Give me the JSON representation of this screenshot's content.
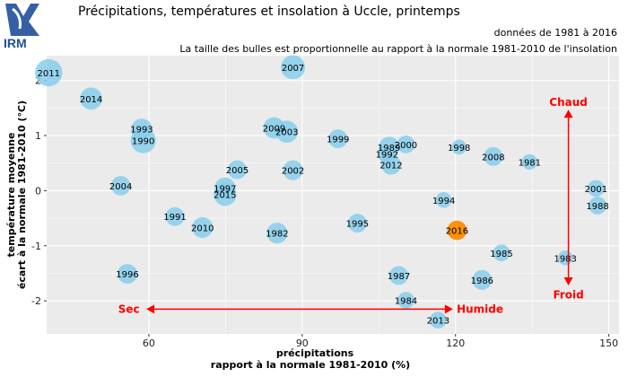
{
  "header": {
    "title": "Précipitations, températures et insolation à Uccle, printemps",
    "subtitle_period": "données de 1981 à 2016",
    "subtitle_bubbles": "La taille des bulles est proportionnelle au rapport à la normale 1981-2010 de l'insolation",
    "logo_text": "IRM"
  },
  "colors": {
    "bubble": "#87ceeb",
    "highlight": "#ff8c00",
    "annotation": "#ff0000",
    "panel": "#ebebeb",
    "grid": "#ffffff",
    "logo": "#1f4f9c"
  },
  "chart_data": {
    "type": "scatter",
    "xlabel_line1": "précipitations",
    "xlabel_line2": "rapport à la normale 1981-2010 (%)",
    "ylabel_line1": "température moyenne",
    "ylabel_line2": "écart à la normale 1981-2010 (°C)",
    "xlim": [
      40,
      152
    ],
    "ylim": [
      -2.6,
      2.45
    ],
    "xticks": [
      60,
      90,
      120,
      150
    ],
    "yticks": [
      -2,
      -1,
      0,
      1,
      2
    ],
    "grid": true,
    "annotations": {
      "dry": "Sec",
      "wet": "Humide",
      "hot": "Chaud",
      "cold": "Froid"
    },
    "highlight_year": "2016",
    "points": [
      {
        "year": "2011",
        "x": 40.4,
        "y": 2.14,
        "sun": 1.38
      },
      {
        "year": "2007",
        "x": 88.2,
        "y": 2.24,
        "sun": 1.22
      },
      {
        "year": "2014",
        "x": 48.7,
        "y": 1.67,
        "sun": 1.12
      },
      {
        "year": "1993",
        "x": 58.6,
        "y": 1.12,
        "sun": 1.05
      },
      {
        "year": "1990",
        "x": 58.9,
        "y": 0.91,
        "sun": 1.28
      },
      {
        "year": "2009",
        "x": 84.5,
        "y": 1.14,
        "sun": 1.08
      },
      {
        "year": "2003",
        "x": 87.0,
        "y": 1.07,
        "sun": 1.12
      },
      {
        "year": "1999",
        "x": 97.0,
        "y": 0.94,
        "sun": 0.95
      },
      {
        "year": "1989",
        "x": 107.0,
        "y": 0.79,
        "sun": 1.05
      },
      {
        "year": "2000",
        "x": 110.3,
        "y": 0.84,
        "sun": 0.9
      },
      {
        "year": "1992",
        "x": 106.6,
        "y": 0.67,
        "sun": 0.95
      },
      {
        "year": "2012",
        "x": 107.4,
        "y": 0.47,
        "sun": 1.0
      },
      {
        "year": "1998",
        "x": 120.7,
        "y": 0.79,
        "sun": 0.75
      },
      {
        "year": "2008",
        "x": 127.4,
        "y": 0.62,
        "sun": 0.95
      },
      {
        "year": "1981",
        "x": 134.5,
        "y": 0.52,
        "sun": 0.78
      },
      {
        "year": "2005",
        "x": 77.3,
        "y": 0.38,
        "sun": 0.95
      },
      {
        "year": "2002",
        "x": 88.2,
        "y": 0.37,
        "sun": 1.0
      },
      {
        "year": "2004",
        "x": 54.5,
        "y": 0.09,
        "sun": 0.98
      },
      {
        "year": "1997",
        "x": 74.9,
        "y": 0.05,
        "sun": 1.05
      },
      {
        "year": "2015",
        "x": 74.9,
        "y": -0.07,
        "sun": 1.15
      },
      {
        "year": "1994",
        "x": 117.7,
        "y": -0.17,
        "sun": 0.8
      },
      {
        "year": "2001",
        "x": 147.5,
        "y": 0.04,
        "sun": 0.85
      },
      {
        "year": "1988",
        "x": 147.8,
        "y": -0.27,
        "sun": 0.9
      },
      {
        "year": "1991",
        "x": 65.1,
        "y": -0.47,
        "sun": 0.95
      },
      {
        "year": "2010",
        "x": 70.5,
        "y": -0.67,
        "sun": 1.05
      },
      {
        "year": "1995",
        "x": 100.8,
        "y": -0.59,
        "sun": 0.95
      },
      {
        "year": "1982",
        "x": 85.1,
        "y": -0.77,
        "sun": 1.05
      },
      {
        "year": "2016",
        "x": 120.3,
        "y": -0.72,
        "sun": 0.98
      },
      {
        "year": "1985",
        "x": 129.0,
        "y": -1.13,
        "sun": 0.85
      },
      {
        "year": "1983",
        "x": 141.5,
        "y": -1.22,
        "sun": 0.75
      },
      {
        "year": "1996",
        "x": 55.8,
        "y": -1.51,
        "sun": 1.0
      },
      {
        "year": "1987",
        "x": 108.9,
        "y": -1.54,
        "sun": 0.95
      },
      {
        "year": "1986",
        "x": 125.2,
        "y": -1.62,
        "sun": 1.0
      },
      {
        "year": "1984",
        "x": 110.3,
        "y": -1.99,
        "sun": 0.85
      },
      {
        "year": "2013",
        "x": 116.6,
        "y": -2.35,
        "sun": 0.85
      }
    ]
  }
}
